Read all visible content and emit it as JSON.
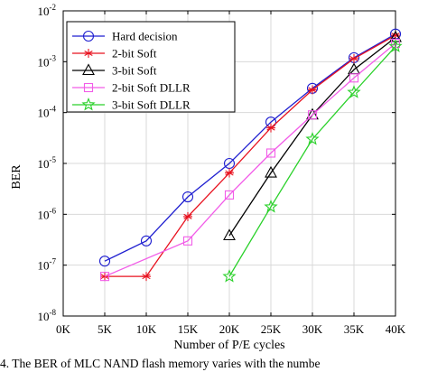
{
  "chart_data": {
    "type": "line",
    "xlabel": "Number of P/E cycles",
    "ylabel": "BER",
    "x_tick_labels": [
      "0K",
      "5K",
      "10K",
      "15K",
      "20K",
      "25K",
      "30K",
      "35K",
      "40K"
    ],
    "x_ticks": [
      0,
      5000,
      10000,
      15000,
      20000,
      25000,
      30000,
      35000,
      40000
    ],
    "xlim": [
      0,
      40000
    ],
    "y_scale": "log",
    "ylim": [
      1e-08,
      0.01
    ],
    "y_tick_exponents": [
      "-8",
      "-7",
      "-6",
      "-5",
      "-4",
      "-3",
      "-2"
    ],
    "y_tick_base": "10",
    "grid": true,
    "legend_position": "top-left",
    "series": [
      {
        "name": "Hard decision",
        "color": "#1f1fd0",
        "marker": "circle",
        "x": [
          5000,
          10000,
          15000,
          20000,
          25000,
          30000,
          35000,
          40000
        ],
        "y": [
          1.2e-07,
          3e-07,
          2.2e-06,
          1e-05,
          6.5e-05,
          0.0003,
          0.0012,
          0.0035
        ]
      },
      {
        "name": "2-bit Soft",
        "color": "#e8121f",
        "marker": "asterisk",
        "x": [
          5000,
          10000,
          15000,
          20000,
          25000,
          30000,
          35000,
          40000
        ],
        "y": [
          6e-08,
          6e-08,
          9e-07,
          6.5e-06,
          5e-05,
          0.00028,
          0.00115,
          0.0033
        ]
      },
      {
        "name": "3-bit Soft",
        "color": "#000000",
        "marker": "triangle",
        "x": [
          20000,
          25000,
          30000,
          35000,
          40000
        ],
        "y": [
          3.8e-07,
          6.5e-06,
          9e-05,
          0.0007,
          0.003
        ]
      },
      {
        "name": "2-bit Soft DLLR",
        "color": "#f25ce8",
        "marker": "square",
        "x": [
          5000,
          15000,
          20000,
          25000,
          30000,
          35000,
          40000
        ],
        "y": [
          6e-08,
          3e-07,
          2.4e-06,
          1.6e-05,
          9e-05,
          0.00048,
          0.0023
        ]
      },
      {
        "name": "3-bit Soft DLLR",
        "color": "#2ad12a",
        "marker": "star",
        "x": [
          20000,
          25000,
          30000,
          35000,
          40000
        ],
        "y": [
          6e-08,
          1.4e-06,
          3e-05,
          0.00025,
          0.002
        ]
      }
    ]
  },
  "caption": "4. The BER of MLC NAND flash memory varies with the numbe"
}
